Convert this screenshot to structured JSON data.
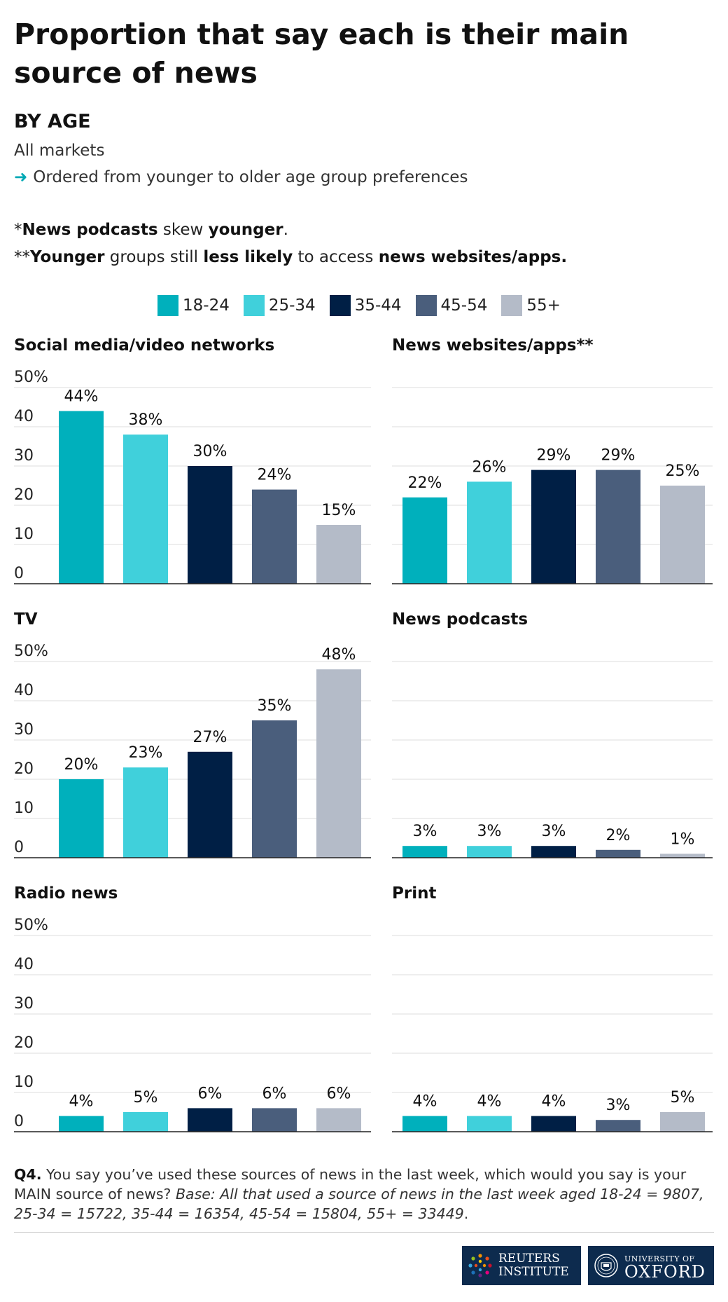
{
  "title": "Proportion that say each is their main source of news",
  "subtitle": "BY AGE",
  "market_line": "All markets",
  "arrow_glyph": "➜",
  "order_line": "Ordered from younger to older age group preferences",
  "note1": {
    "prefix": "*",
    "b1": "News podcasts",
    "m1": " skew ",
    "b2": "younger",
    "end": "."
  },
  "note2": {
    "prefix": "**",
    "b1": "Younger",
    "m1": " groups still ",
    "b2": "less likely",
    "m2": " to access ",
    "b3": "news websites/apps."
  },
  "colors": {
    "18-24": "#00b0bc",
    "25-34": "#40d0db",
    "35-44": "#001f45",
    "45-54": "#4a5e7c",
    "55+": "#b4bbc8"
  },
  "chart_data": [
    {
      "type": "bar",
      "title": "Social media/video networks",
      "categories": [
        "18-24",
        "25-34",
        "35-44",
        "45-54",
        "55+"
      ],
      "values": [
        44,
        38,
        30,
        24,
        15
      ],
      "labels": [
        "44%",
        "38%",
        "30%",
        "24%",
        "15%"
      ],
      "yticks": [
        "0",
        "10",
        "20",
        "30",
        "40",
        "50%"
      ],
      "ylim": [
        0,
        50
      ],
      "grid": true
    },
    {
      "type": "bar",
      "title": "News websites/apps**",
      "categories": [
        "18-24",
        "25-34",
        "35-44",
        "45-54",
        "55+"
      ],
      "values": [
        22,
        26,
        29,
        29,
        25
      ],
      "labels": [
        "22%",
        "26%",
        "29%",
        "29%",
        "25%"
      ],
      "yticks": [],
      "ylim": [
        0,
        50
      ],
      "grid": true
    },
    {
      "type": "bar",
      "title": "TV",
      "categories": [
        "18-24",
        "25-34",
        "35-44",
        "45-54",
        "55+"
      ],
      "values": [
        20,
        23,
        27,
        35,
        48
      ],
      "labels": [
        "20%",
        "23%",
        "27%",
        "35%",
        "48%"
      ],
      "yticks": [
        "0",
        "10",
        "20",
        "30",
        "40",
        "50%"
      ],
      "ylim": [
        0,
        50
      ],
      "grid": true
    },
    {
      "type": "bar",
      "title": "News podcasts",
      "categories": [
        "18-24",
        "25-34",
        "35-44",
        "45-54",
        "55+"
      ],
      "values": [
        3,
        3,
        3,
        2,
        1
      ],
      "labels": [
        "3%",
        "3%",
        "3%",
        "2%",
        "1%"
      ],
      "yticks": [],
      "ylim": [
        0,
        50
      ],
      "grid": true
    },
    {
      "type": "bar",
      "title": "Radio news",
      "categories": [
        "18-24",
        "25-34",
        "35-44",
        "45-54",
        "55+"
      ],
      "values": [
        4,
        5,
        6,
        6,
        6
      ],
      "labels": [
        "4%",
        "5%",
        "6%",
        "6%",
        "6%"
      ],
      "yticks": [
        "0",
        "10",
        "20",
        "30",
        "40",
        "50%"
      ],
      "ylim": [
        0,
        50
      ],
      "grid": true
    },
    {
      "type": "bar",
      "title": "Print",
      "categories": [
        "18-24",
        "25-34",
        "35-44",
        "45-54",
        "55+"
      ],
      "values": [
        4,
        4,
        4,
        3,
        5
      ],
      "labels": [
        "4%",
        "4%",
        "4%",
        "3%",
        "5%"
      ],
      "yticks": [],
      "ylim": [
        0,
        50
      ],
      "grid": true
    }
  ],
  "footnote": {
    "q": "Q4.",
    "text": " You say you’ve used these sources of news in the last week, which would you say is your MAIN source of news? ",
    "base": "Base: All that used a source of news in the last week aged 18-24 = 9807, 25-34 = 15722, 35-44 = 16354, 45-54 = 15804, 55+ = 33449",
    "end": "."
  },
  "logos": {
    "reuters_line1": "REUTERS",
    "reuters_line2": "INSTITUTE",
    "oxford_line1": "UNIVERSITY OF",
    "oxford_line2": "OXFORD"
  }
}
